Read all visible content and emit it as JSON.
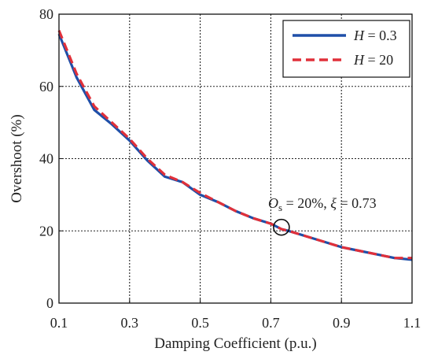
{
  "chart_data": {
    "type": "line",
    "xlabel": "Damping Coefficient (p.u.)",
    "ylabel": "Overshoot (%)",
    "xlim": [
      0.1,
      1.1
    ],
    "ylim": [
      0,
      80
    ],
    "xticks": [
      0.1,
      0.3,
      0.5,
      0.7,
      0.9,
      1.1
    ],
    "xtick_labels": [
      "0.1",
      "0.3",
      "0.5",
      "0.7",
      "0.9",
      "1.1"
    ],
    "yticks": [
      0,
      20,
      40,
      60,
      80
    ],
    "ytick_labels": [
      "0",
      "20",
      "40",
      "60",
      "80"
    ],
    "vgrid": [
      0.3,
      0.5,
      0.7,
      0.9
    ],
    "hgrid": [
      20,
      40,
      60
    ],
    "grid": true,
    "legend_position": "top-right",
    "series": [
      {
        "name_italic": "H",
        "name_rest": " = 0.3",
        "color": "#1f4fa8",
        "style": "solid",
        "x": [
          0.1,
          0.15,
          0.2,
          0.25,
          0.3,
          0.35,
          0.4,
          0.45,
          0.5,
          0.55,
          0.6,
          0.65,
          0.7,
          0.73,
          0.75,
          0.8,
          0.85,
          0.9,
          0.95,
          1.0,
          1.05,
          1.1
        ],
        "y": [
          74.5,
          62.5,
          53.5,
          49.5,
          45.0,
          39.5,
          35.0,
          33.5,
          30.0,
          28.0,
          25.5,
          23.5,
          22.0,
          20.5,
          20.0,
          18.5,
          17.0,
          15.5,
          14.5,
          13.5,
          12.5,
          12.0
        ]
      },
      {
        "name_italic": "H",
        "name_rest": " = 20",
        "color": "#e0303a",
        "style": "dashed",
        "x": [
          0.1,
          0.15,
          0.2,
          0.25,
          0.3,
          0.35,
          0.4,
          0.45,
          0.5,
          0.55,
          0.6,
          0.65,
          0.7,
          0.73,
          0.75,
          0.8,
          0.85,
          0.9,
          0.95,
          1.0,
          1.05,
          1.1
        ],
        "y": [
          75.5,
          63.5,
          54.5,
          50.0,
          45.5,
          40.0,
          35.5,
          33.5,
          30.5,
          28.0,
          25.5,
          23.5,
          22.0,
          20.5,
          20.0,
          18.5,
          17.0,
          15.5,
          14.5,
          13.5,
          12.5,
          12.5
        ]
      }
    ],
    "annotation": {
      "point": {
        "x": 0.73,
        "y": 21
      },
      "o_symbol": "O",
      "o_subscript": "s",
      "text_mid": " = 20%, ",
      "xi_symbol": "ξ",
      "text_end": " = 0.73"
    }
  }
}
